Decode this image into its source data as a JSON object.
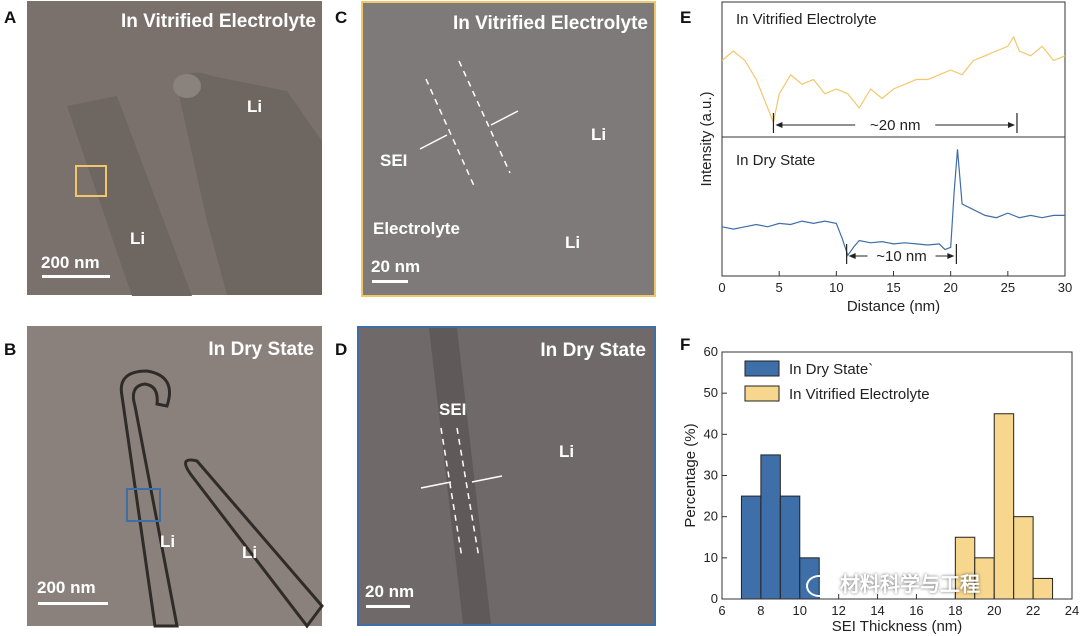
{
  "panels": {
    "A": {
      "letter": "A",
      "title": "In Vitrified Electrolyte",
      "label1": "Li",
      "label2": "Li",
      "scalebar": "200 nm"
    },
    "B": {
      "letter": "B",
      "title": "In Dry State",
      "label1": "Li",
      "label2": "Li",
      "scalebar": "200 nm"
    },
    "C": {
      "letter": "C",
      "title": "In Vitrified Electrolyte",
      "sei": "SEI",
      "electrolyte": "Electrolyte",
      "label1": "Li",
      "label2": "Li",
      "scalebar": "20 nm"
    },
    "D": {
      "letter": "D",
      "title": "In Dry State",
      "sei": "SEI",
      "label1": "Li",
      "scalebar": "20 nm"
    },
    "E": {
      "letter": "E"
    },
    "F": {
      "letter": "F"
    }
  },
  "colors": {
    "yellow": "#f2c76a",
    "yellow_fill": "#f7d78d",
    "blue": "#3f6ea6",
    "blue_fill": "#3e6fa8"
  },
  "watermark": "材料科学与工程",
  "chart_data": [
    {
      "id": "E",
      "type": "line",
      "xlabel": "Distance (nm)",
      "ylabel": "Intensity (a.u.)",
      "xlim": [
        0,
        30
      ],
      "xticks": [
        0,
        5,
        10,
        15,
        20,
        25,
        30
      ],
      "subplots": [
        {
          "title": "In Vitrified Electrolyte",
          "annotation": "~20 nm",
          "marker_x": [
            4.5,
            25.8
          ],
          "x": [
            0,
            1,
            2,
            3,
            3.5,
            4,
            4.5,
            5,
            6,
            7,
            8,
            9,
            10,
            11,
            12,
            13,
            14,
            15,
            16,
            17,
            18,
            19,
            20,
            21,
            22,
            23,
            24,
            25,
            25.5,
            26,
            27,
            28,
            29,
            30
          ],
          "y": [
            0.7,
            0.8,
            0.7,
            0.5,
            0.35,
            0.2,
            0.05,
            0.35,
            0.55,
            0.45,
            0.5,
            0.35,
            0.4,
            0.35,
            0.2,
            0.4,
            0.3,
            0.4,
            0.45,
            0.5,
            0.5,
            0.55,
            0.6,
            0.55,
            0.7,
            0.75,
            0.8,
            0.85,
            0.95,
            0.8,
            0.75,
            0.85,
            0.7,
            0.75
          ]
        },
        {
          "title": "In Dry State",
          "annotation": "~10 nm",
          "marker_x": [
            10.9,
            20.5
          ],
          "x": [
            0,
            1,
            2,
            3,
            4,
            5,
            6,
            7,
            8,
            9,
            10,
            10.5,
            11,
            11.5,
            12,
            13,
            14,
            15,
            16,
            17,
            18,
            19,
            19.5,
            20,
            20.3,
            20.6,
            21,
            22,
            23,
            24,
            25,
            26,
            27,
            28,
            29,
            30
          ],
          "y": [
            0.3,
            0.28,
            0.3,
            0.32,
            0.3,
            0.33,
            0.32,
            0.35,
            0.33,
            0.35,
            0.33,
            0.2,
            0.05,
            0.12,
            0.18,
            0.16,
            0.17,
            0.15,
            0.16,
            0.15,
            0.14,
            0.15,
            0.1,
            0.12,
            0.6,
            0.98,
            0.5,
            0.45,
            0.4,
            0.38,
            0.42,
            0.38,
            0.4,
            0.38,
            0.4,
            0.4
          ]
        }
      ]
    },
    {
      "id": "F",
      "type": "bar",
      "xlabel": "SEI Thickness (nm)",
      "ylabel": "Percentage (%)",
      "xlim": [
        6,
        24
      ],
      "ylim": [
        0,
        60
      ],
      "xticks": [
        6,
        8,
        10,
        12,
        14,
        16,
        18,
        20,
        22,
        24
      ],
      "yticks": [
        0,
        10,
        20,
        30,
        40,
        50,
        60
      ],
      "series": [
        {
          "name": "In Dry State`",
          "bin_edges": [
            7,
            8,
            9,
            10,
            11
          ],
          "values": [
            25,
            35,
            25,
            10
          ]
        },
        {
          "name": "In Vitrified Electrolyte",
          "bin_edges": [
            18,
            19,
            20,
            21,
            22,
            23
          ],
          "values": [
            15,
            10,
            45,
            20,
            5
          ]
        }
      ]
    }
  ]
}
